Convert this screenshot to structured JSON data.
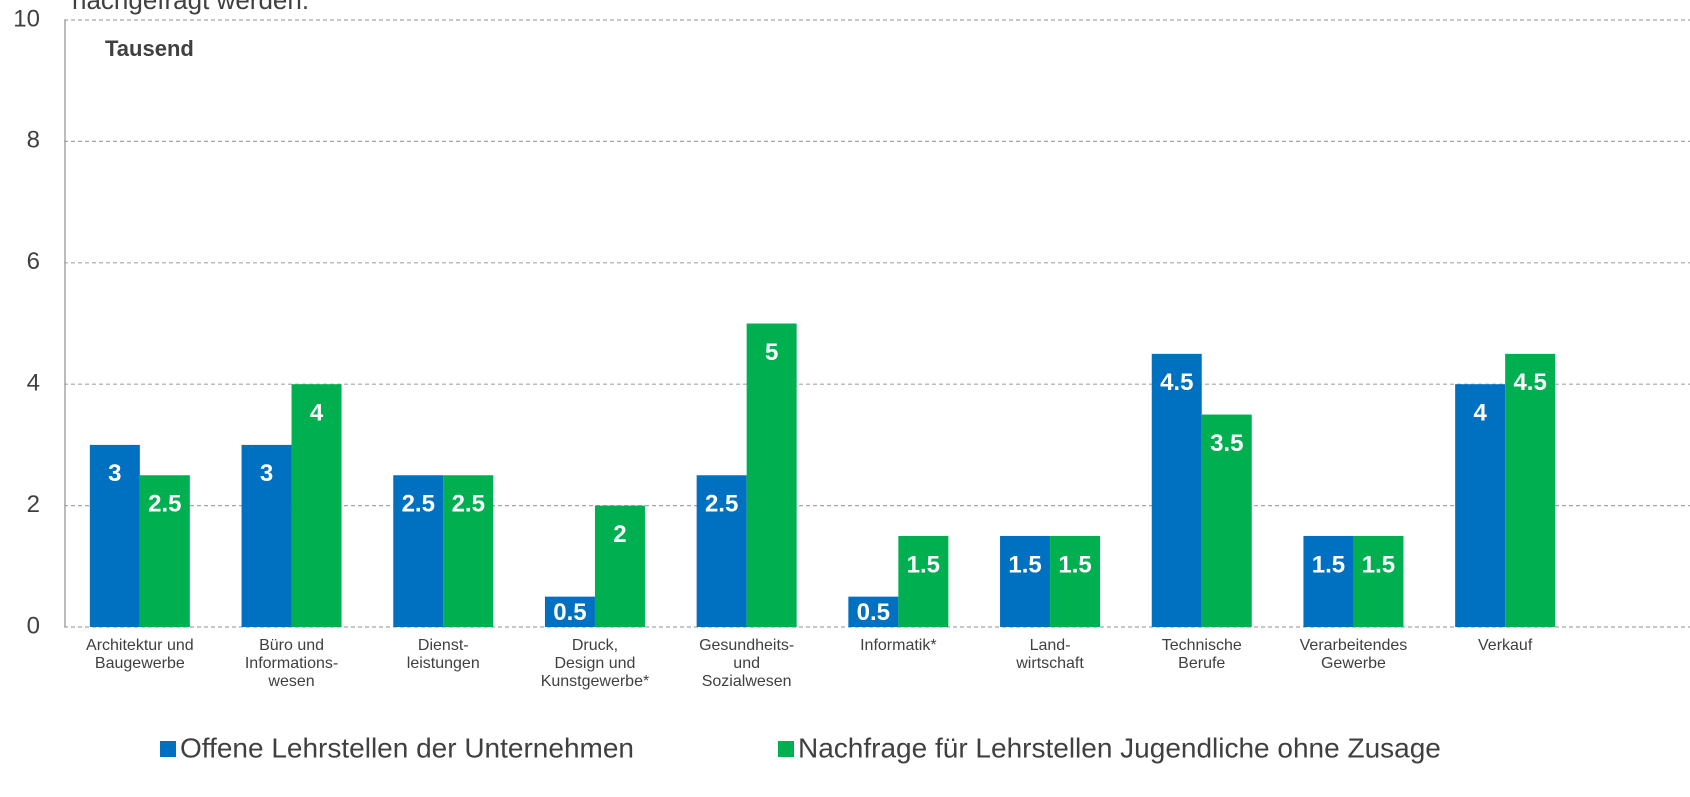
{
  "chart_data": {
    "type": "bar",
    "title": "nachgefragt werden.",
    "unit_label": "Tausend",
    "categories": [
      [
        "Architektur und",
        "Baugewerbe"
      ],
      [
        "Büro und",
        "Informations-",
        "wesen"
      ],
      [
        "Dienst-",
        "leistungen"
      ],
      [
        "Druck,",
        "Design und",
        "Kunstgewerbe*"
      ],
      [
        "Gesundheits-",
        "und",
        "Sozialwesen"
      ],
      [
        "Informatik*"
      ],
      [
        "Land-",
        "wirtschaft"
      ],
      [
        "Technische",
        "Berufe"
      ],
      [
        "Verarbeitendes",
        "Gewerbe"
      ],
      [
        "Verkauf"
      ]
    ],
    "series": [
      {
        "name": "Offene Lehrstellen der Unternehmen",
        "color": "#0070c0",
        "values": [
          3,
          3,
          2.5,
          0.5,
          2.5,
          0.5,
          1.5,
          4.5,
          1.5,
          4
        ]
      },
      {
        "name": "Nachfrage für Lehrstellen Jugendliche ohne Zusage",
        "color": "#00b050",
        "values": [
          2.5,
          4,
          2.5,
          2,
          5,
          1.5,
          1.5,
          3.5,
          1.5,
          4.5
        ]
      }
    ],
    "ylim": [
      0,
      10
    ],
    "yticks": [
      0,
      2,
      4,
      6,
      8,
      10
    ],
    "grid": true,
    "legend": "bottom"
  }
}
